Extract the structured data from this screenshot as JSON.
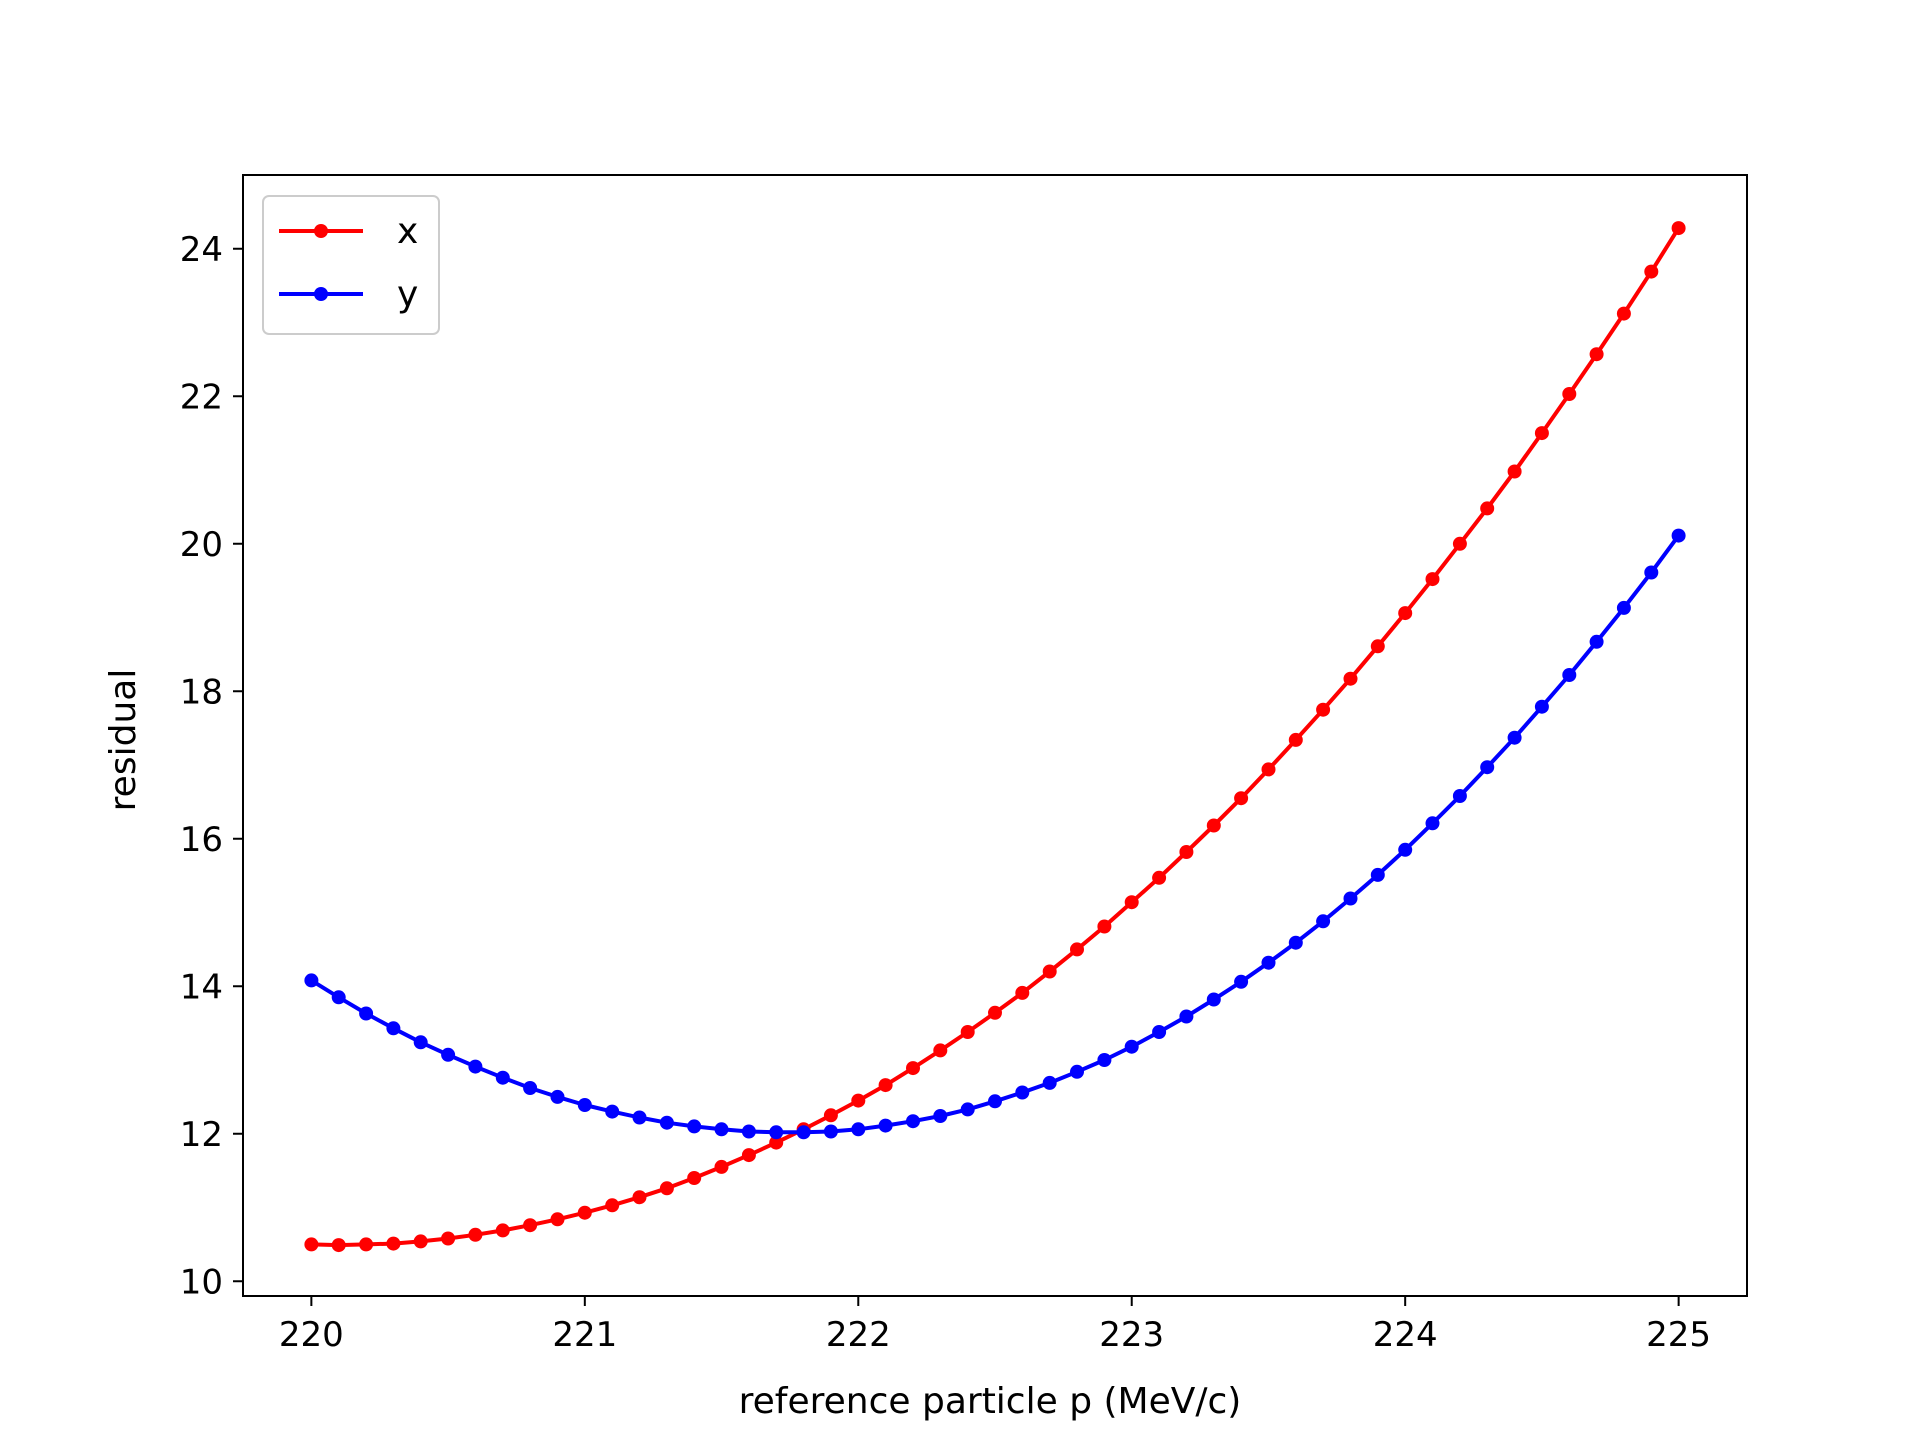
{
  "chart_data": {
    "type": "line",
    "title": "",
    "xlabel": "reference particle p (MeV/c)",
    "ylabel": "residual",
    "xlim": [
      219.75,
      225.25
    ],
    "ylim": [
      9.8,
      25.0
    ],
    "x_ticks": [
      220,
      221,
      222,
      223,
      224,
      225
    ],
    "y_ticks": [
      10,
      12,
      14,
      16,
      18,
      20,
      22,
      24
    ],
    "x_tick_labels": [
      "220",
      "221",
      "222",
      "223",
      "224",
      "225"
    ],
    "y_tick_labels": [
      "10",
      "12",
      "14",
      "16",
      "18",
      "20",
      "22",
      "24"
    ],
    "grid": false,
    "legend_position": "top-left",
    "x": [
      220.0,
      220.1,
      220.2,
      220.3,
      220.4,
      220.5,
      220.6,
      220.7,
      220.8,
      220.9,
      221.0,
      221.1,
      221.2,
      221.3,
      221.4,
      221.5,
      221.6,
      221.7,
      221.8,
      221.9,
      222.0,
      222.1,
      222.2,
      222.3,
      222.4,
      222.5,
      222.6,
      222.7,
      222.8,
      222.9,
      223.0,
      223.1,
      223.2,
      223.3,
      223.4,
      223.5,
      223.6,
      223.7,
      223.8,
      223.9,
      224.0,
      224.1,
      224.2,
      224.3,
      224.4,
      224.5,
      224.6,
      224.7,
      224.8,
      224.9,
      225.0
    ],
    "series": [
      {
        "name": "x",
        "color": "#ff0000",
        "values": [
          10.5,
          10.49,
          10.5,
          10.51,
          10.54,
          10.58,
          10.63,
          10.69,
          10.76,
          10.84,
          10.93,
          11.03,
          11.14,
          11.26,
          11.4,
          11.55,
          11.71,
          11.88,
          12.06,
          12.25,
          12.45,
          12.66,
          12.89,
          13.13,
          13.38,
          13.64,
          13.91,
          14.2,
          14.5,
          14.81,
          15.14,
          15.47,
          15.82,
          16.18,
          16.55,
          16.94,
          17.34,
          17.75,
          18.17,
          18.61,
          19.06,
          19.52,
          20.0,
          20.48,
          20.98,
          21.5,
          22.03,
          22.57,
          23.12,
          23.69,
          24.28
        ]
      },
      {
        "name": "y",
        "color": "#0000ff",
        "values": [
          14.08,
          13.85,
          13.63,
          13.43,
          13.24,
          13.07,
          12.91,
          12.76,
          12.62,
          12.5,
          12.39,
          12.3,
          12.22,
          12.15,
          12.1,
          12.06,
          12.03,
          12.02,
          12.02,
          12.03,
          12.06,
          12.11,
          12.17,
          12.24,
          12.33,
          12.44,
          12.56,
          12.69,
          12.84,
          13.0,
          13.18,
          13.38,
          13.59,
          13.82,
          14.06,
          14.32,
          14.59,
          14.88,
          15.19,
          15.51,
          15.85,
          16.21,
          16.58,
          16.97,
          17.37,
          17.79,
          18.22,
          18.67,
          19.13,
          19.61,
          20.11
        ]
      }
    ]
  }
}
